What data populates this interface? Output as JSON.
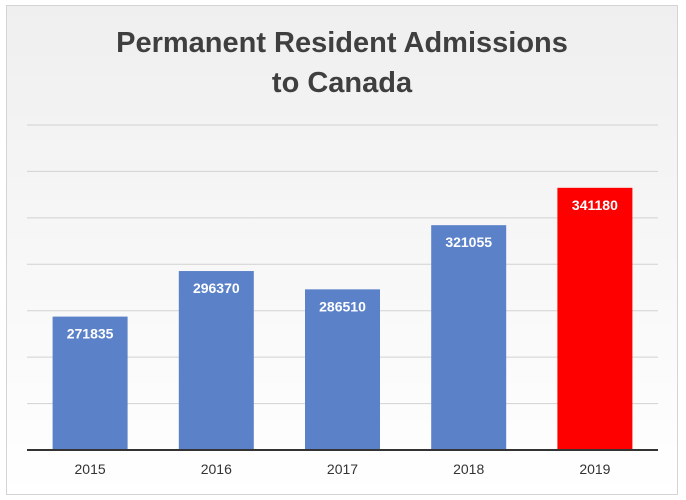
{
  "chart_data": {
    "type": "bar",
    "title_lines": [
      "Permanent Resident Admissions",
      "to Canada"
    ],
    "categories": [
      "2015",
      "2016",
      "2017",
      "2018",
      "2019"
    ],
    "values": [
      271835,
      296370,
      286510,
      321055,
      341180
    ],
    "data_labels": [
      "271835",
      "296370",
      "286510",
      "321055",
      "341180"
    ],
    "ylim": [
      200000,
      375000
    ],
    "y_gridline_step": 25000,
    "y_tick_labels_shown": false,
    "grid": true,
    "legend": "none",
    "bar_colors": [
      "#5b82c9",
      "#5b82c9",
      "#5b82c9",
      "#5b82c9",
      "#ff0000"
    ]
  }
}
